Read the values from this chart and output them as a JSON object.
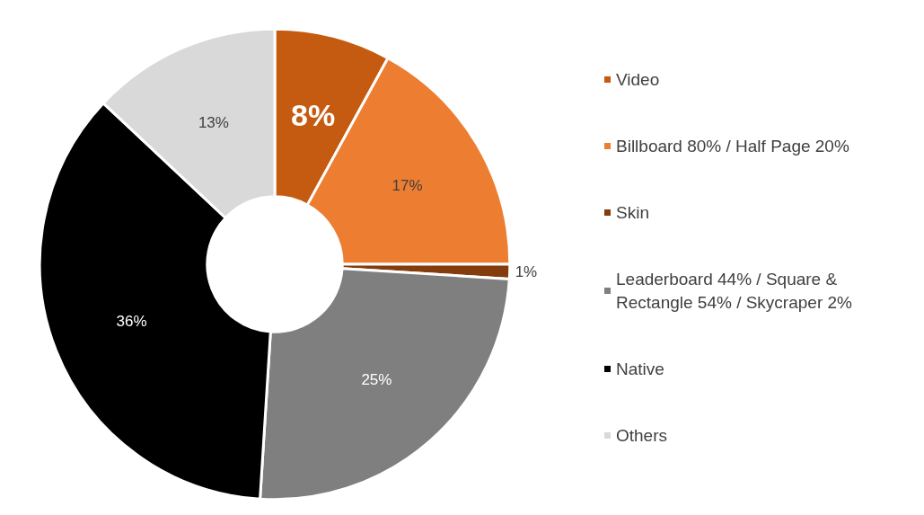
{
  "chart_data": {
    "type": "donut",
    "categories": [
      "Video",
      "Billboard 80% / Half Page 20%",
      "Skin",
      "Leaderboard 44% / Square & Rectangle 54% / Skycraper 2%",
      "Native",
      "Others"
    ],
    "values": [
      8,
      17,
      1,
      25,
      36,
      13
    ],
    "colors": [
      "#c55a11",
      "#ed7d31",
      "#843c0c",
      "#7f7f7f",
      "#000000",
      "#d9d9d9"
    ],
    "value_labels": [
      "8%",
      "17%",
      "1%",
      "25%",
      "36%",
      "13%"
    ],
    "legend": "right"
  }
}
